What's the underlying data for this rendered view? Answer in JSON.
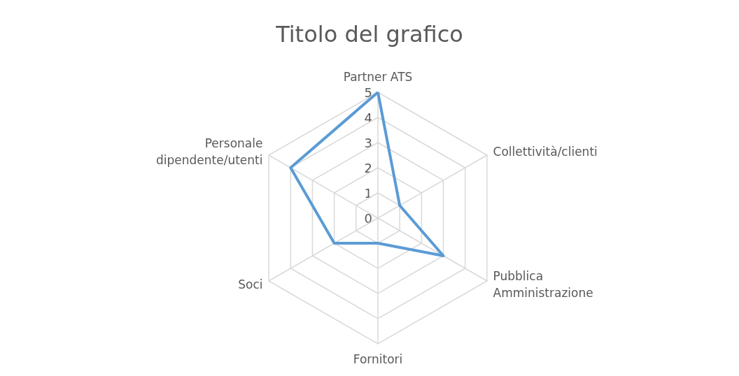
{
  "chart_data": {
    "type": "radar",
    "title": "Titolo del grafico",
    "categories": [
      "Partner ATS",
      "Collettività/clienti",
      "Pubblica\nAmministrazione",
      "Fornitori",
      "Soci",
      "Personale\ndipendente/utenti"
    ],
    "series": [
      {
        "color": "#5b9bd5",
        "values": [
          5,
          1,
          3,
          1,
          2,
          4
        ]
      }
    ],
    "ylim": [
      0,
      5
    ],
    "yticks": [
      0,
      1,
      2,
      3,
      4,
      5
    ],
    "grid": true,
    "marker": "none",
    "line_style": "solid"
  }
}
